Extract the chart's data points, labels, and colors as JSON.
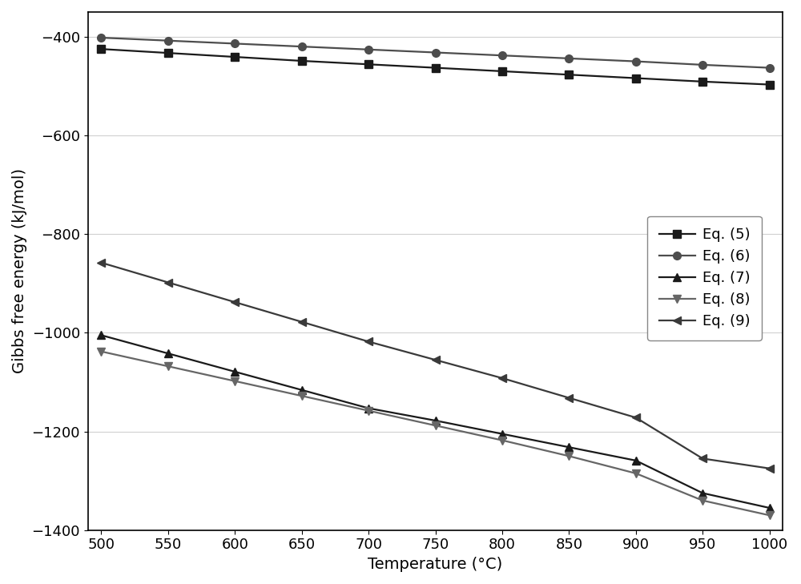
{
  "temperature": [
    500,
    550,
    600,
    650,
    700,
    750,
    800,
    850,
    900,
    950,
    1000
  ],
  "eq5": [
    -425,
    -433,
    -441,
    -449,
    -456,
    -463,
    -470,
    -477,
    -484,
    -491,
    -497
  ],
  "eq6": [
    -402,
    -408,
    -414,
    -420,
    -426,
    -432,
    -438,
    -444,
    -450,
    -457,
    -463
  ],
  "eq7": [
    -1005,
    -1042,
    -1079,
    -1116,
    -1153,
    -1178,
    -1205,
    -1232,
    -1259,
    -1325,
    -1355
  ],
  "eq8": [
    -1038,
    -1068,
    -1098,
    -1128,
    -1158,
    -1188,
    -1218,
    -1250,
    -1285,
    -1340,
    -1370
  ],
  "eq9": [
    -858,
    -898,
    -938,
    -978,
    -1018,
    -1055,
    -1092,
    -1132,
    -1172,
    -1255,
    -1275
  ],
  "xlabel": "Temperature (°C)",
  "ylabel": "Gibbs free energy (kJ/mol)",
  "xlim": [
    490,
    1010
  ],
  "ylim": [
    -1400,
    -350
  ],
  "xticks": [
    500,
    550,
    600,
    650,
    700,
    750,
    800,
    850,
    900,
    950,
    1000
  ],
  "yticks": [
    -1400,
    -1200,
    -1000,
    -800,
    -600,
    -400
  ],
  "colors": {
    "eq5": "#1a1a1a",
    "eq6": "#4d4d4d",
    "eq7": "#1a1a1a",
    "eq8": "#666666",
    "eq9": "#3a3a3a"
  },
  "grid_color": "#d0d0d0",
  "background_color": "#ffffff",
  "axis_label_fontsize": 14,
  "tick_fontsize": 13,
  "legend_fontsize": 13
}
